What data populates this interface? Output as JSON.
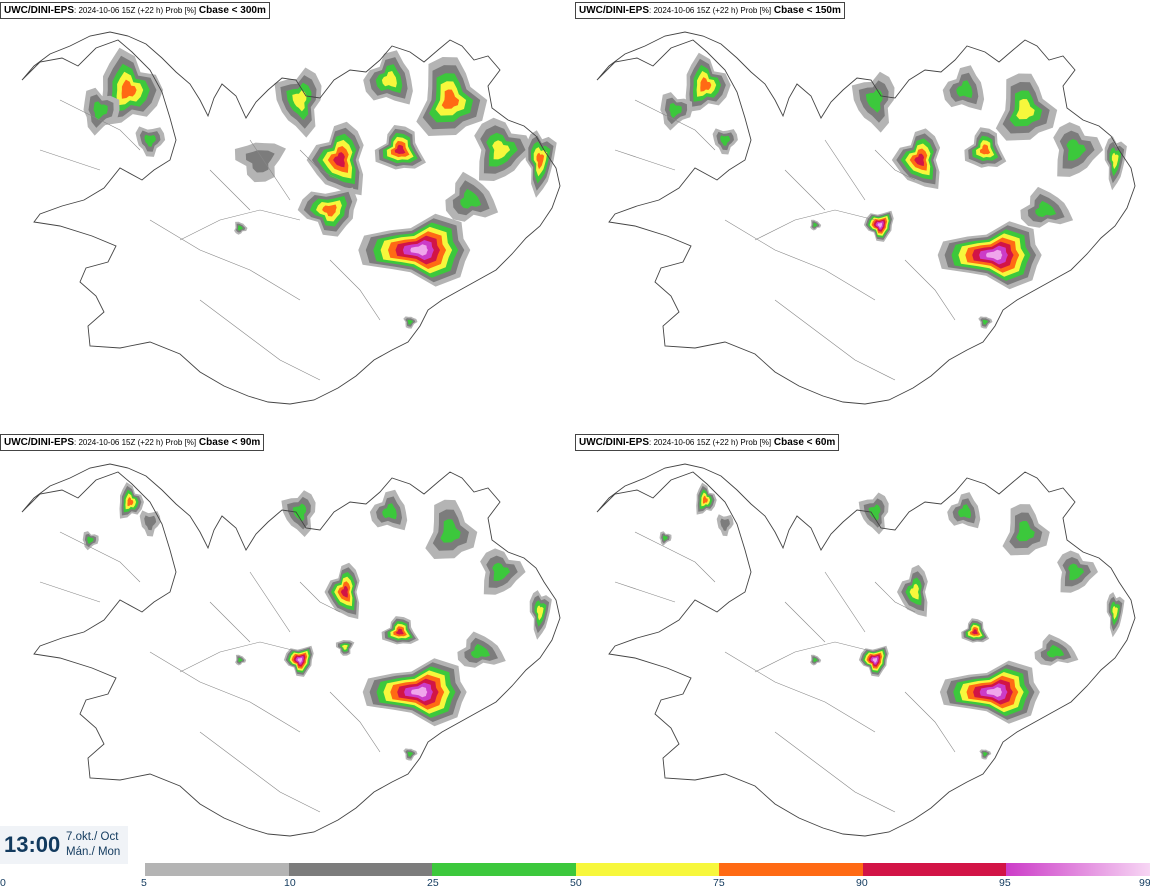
{
  "panels": [
    {
      "model": "UWC/DINI-EPS",
      "run": ": 2024-10-06 15Z (+22 h) Prob [%]",
      "param": "Cbase < 300m"
    },
    {
      "model": "UWC/DINI-EPS",
      "run": ": 2024-10-06 15Z (+22 h) Prob [%]",
      "param": "Cbase < 150m"
    },
    {
      "model": "UWC/DINI-EPS",
      "run": ": 2024-10-06 15Z (+22 h) Prob [%]",
      "param": "Cbase < 90m"
    },
    {
      "model": "UWC/DINI-EPS",
      "run": ": 2024-10-06 15Z (+22 h) Prob [%]",
      "param": "Cbase < 60m"
    }
  ],
  "time": {
    "clock": "13:00",
    "date_line1": "7.okt./ Oct",
    "date_line2": "Mán./ Mon"
  },
  "colorbar": {
    "ticks": [
      "0",
      "5",
      "10",
      "25",
      "50",
      "75",
      "90",
      "95",
      "99"
    ],
    "colors": [
      "#b4b4b4",
      "#7c7c7c",
      "#3cc83c",
      "#f7f73c",
      "#ff6a14",
      "#d21446",
      "#cc3cc8",
      "#f7c6f2"
    ]
  }
}
